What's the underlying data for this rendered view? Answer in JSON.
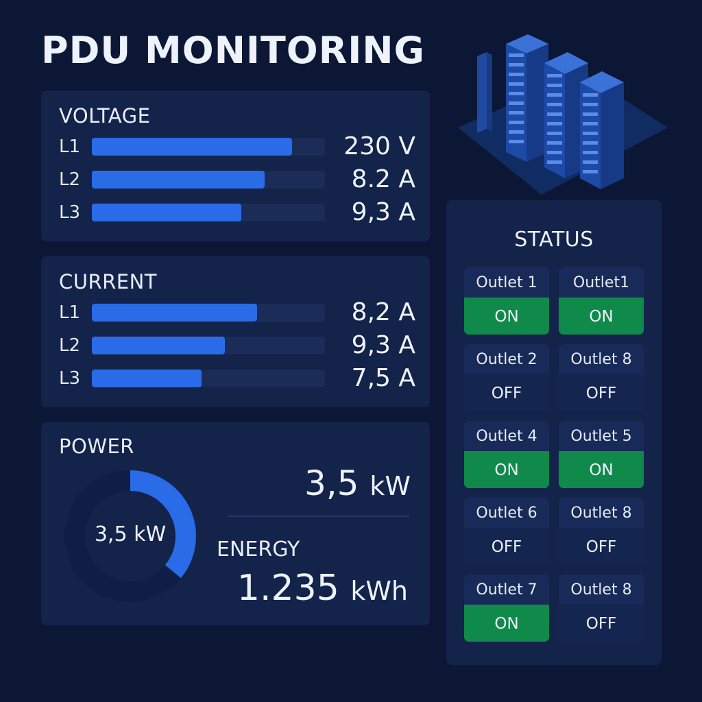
{
  "header": {
    "title": "PDU MONITORING"
  },
  "voltage": {
    "title": "VOLTAGE",
    "rows": [
      {
        "label": "L1",
        "value": "230 V",
        "level": 0.86
      },
      {
        "label": "L2",
        "value": "8.2 A",
        "level": 0.74
      },
      {
        "label": "L3",
        "value": "9,3 A",
        "level": 0.64
      }
    ]
  },
  "current": {
    "title": "CURRENT",
    "rows": [
      {
        "label": "L1",
        "value": "8,2 A",
        "level": 0.71
      },
      {
        "label": "L2",
        "value": "9,3 A",
        "level": 0.57
      },
      {
        "label": "L3",
        "value": "7,5 A",
        "level": 0.47
      }
    ]
  },
  "power": {
    "title": "POWER",
    "gauge_label": "3,5 kW",
    "gauge_fraction": 0.36,
    "value_number": "3,5",
    "value_unit": "kW",
    "energy_title": "ENERGY",
    "energy_number": "1.235",
    "energy_unit": "kWh"
  },
  "status": {
    "title": "STATUS",
    "outlets": [
      {
        "name": "Outlet 1",
        "state": "ON"
      },
      {
        "name": "Outlet1",
        "state": "ON"
      },
      {
        "name": "Outlet 2",
        "state": "OFF"
      },
      {
        "name": "Outlet 8",
        "state": "OFF"
      },
      {
        "name": "Outlet 4",
        "state": "ON"
      },
      {
        "name": "Outlet 5",
        "state": "ON"
      },
      {
        "name": "Outlet 6",
        "state": "OFF"
      },
      {
        "name": "Outlet 8",
        "state": "OFF"
      },
      {
        "name": "Outlet 7",
        "state": "ON"
      },
      {
        "name": "Outlet 8",
        "state": "OFF"
      }
    ]
  },
  "colors": {
    "background": "#0c1735",
    "panel": "#13234a",
    "bar": "#2a6be8",
    "on": "#0f8a4a",
    "off": "#142650"
  },
  "illustration": {
    "icon": "server-rack-icon"
  }
}
